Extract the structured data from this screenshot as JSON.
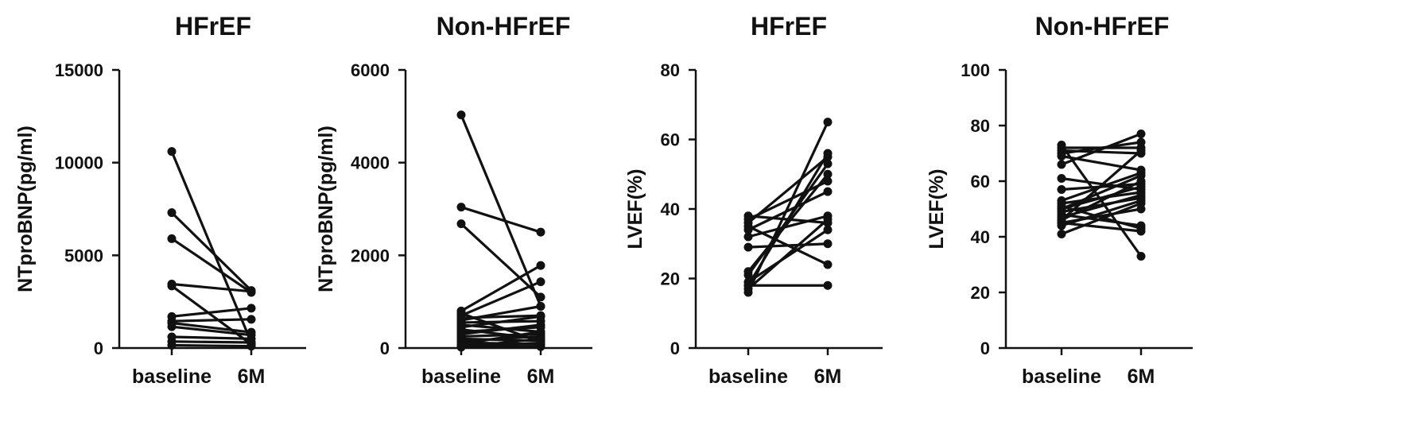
{
  "chart_data": [
    {
      "type": "line",
      "title": "HFrEF",
      "ylabel": "NTproBNP(pg/ml)",
      "categories": [
        "baseline",
        "6M"
      ],
      "ylim": [
        0,
        15000
      ],
      "yticks": [
        0,
        5000,
        10000,
        15000
      ],
      "pairs": [
        [
          10600,
          300
        ],
        [
          7300,
          3100
        ],
        [
          5900,
          3000
        ],
        [
          3450,
          3050
        ],
        [
          3350,
          200
        ],
        [
          1700,
          2150
        ],
        [
          1450,
          1550
        ],
        [
          1350,
          850
        ],
        [
          1150,
          700
        ],
        [
          600,
          500
        ],
        [
          350,
          300
        ],
        [
          150,
          100
        ]
      ]
    },
    {
      "type": "line",
      "title": "Non-HFrEF",
      "ylabel": "NTproBNP(pg/ml)",
      "categories": [
        "baseline",
        "6M"
      ],
      "ylim": [
        0,
        6000
      ],
      "yticks": [
        0,
        2000,
        4000,
        6000
      ],
      "pairs": [
        [
          5030,
          900
        ],
        [
          3040,
          2500
        ],
        [
          2680,
          1100
        ],
        [
          800,
          1780
        ],
        [
          750,
          130
        ],
        [
          700,
          1430
        ],
        [
          650,
          700
        ],
        [
          600,
          900
        ],
        [
          550,
          580
        ],
        [
          500,
          350
        ],
        [
          450,
          680
        ],
        [
          400,
          200
        ],
        [
          350,
          450
        ],
        [
          300,
          500
        ],
        [
          250,
          300
        ],
        [
          200,
          150
        ],
        [
          150,
          250
        ],
        [
          120,
          80
        ],
        [
          90,
          350
        ],
        [
          60,
          100
        ],
        [
          40,
          30
        ],
        [
          20,
          200
        ]
      ]
    },
    {
      "type": "line",
      "title": "HFrEF",
      "ylabel": "LVEF(%)",
      "categories": [
        "baseline",
        "6M"
      ],
      "ylim": [
        0,
        80
      ],
      "yticks": [
        0,
        20,
        40,
        60,
        80
      ],
      "pairs": [
        [
          38,
          36
        ],
        [
          37,
          48
        ],
        [
          36,
          55
        ],
        [
          35,
          24
        ],
        [
          34,
          45
        ],
        [
          32,
          38
        ],
        [
          29,
          30
        ],
        [
          22,
          50
        ],
        [
          21,
          53
        ],
        [
          19,
          34
        ],
        [
          18,
          56
        ],
        [
          18,
          18
        ],
        [
          17,
          37
        ],
        [
          16,
          65
        ]
      ]
    },
    {
      "type": "line",
      "title": "Non-HFrEF",
      "ylabel": "LVEF(%)",
      "categories": [
        "baseline",
        "6M"
      ],
      "ylim": [
        0,
        100
      ],
      "yticks": [
        0,
        20,
        40,
        60,
        80,
        100
      ],
      "pairs": [
        [
          73,
          33
        ],
        [
          72,
          72
        ],
        [
          71,
          70
        ],
        [
          70,
          74
        ],
        [
          69,
          64
        ],
        [
          66,
          77
        ],
        [
          61,
          57
        ],
        [
          57,
          59
        ],
        [
          53,
          63
        ],
        [
          52,
          56
        ],
        [
          51,
          43
        ],
        [
          50,
          58
        ],
        [
          50,
          62
        ],
        [
          49,
          54
        ],
        [
          48,
          44
        ],
        [
          47,
          55
        ],
        [
          46,
          60
        ],
        [
          46,
          71
        ],
        [
          45,
          42
        ],
        [
          45,
          50
        ],
        [
          44,
          53
        ],
        [
          41,
          52
        ]
      ]
    }
  ]
}
